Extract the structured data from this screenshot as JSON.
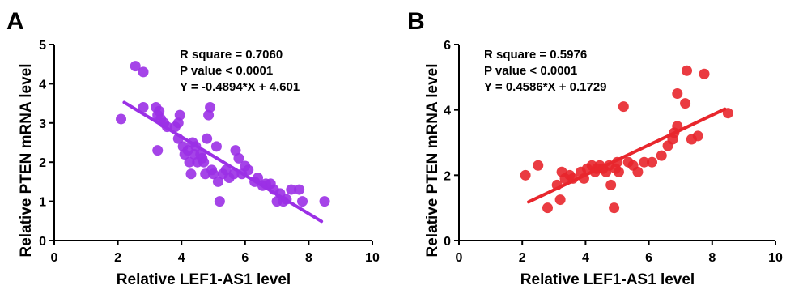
{
  "chart_data": [
    {
      "panel_label": "A",
      "type": "scatter",
      "xlabel": "Relative LEF1-AS1 level",
      "ylabel": "Relative PTEN mRNA level",
      "xlim": [
        0,
        10
      ],
      "ylim": [
        0,
        5
      ],
      "xticks": [
        0,
        2,
        4,
        6,
        8,
        10
      ],
      "yticks": [
        0,
        1,
        2,
        3,
        4,
        5
      ],
      "color": "#9b30e6",
      "annotations": [
        "R square = 0.7060",
        "P value < 0.0001",
        "Y = -0.4894*X + 4.601"
      ],
      "fit": {
        "slope": -0.4894,
        "intercept": 4.601,
        "x_range": [
          2.2,
          8.4
        ]
      },
      "points": [
        [
          2.1,
          3.1
        ],
        [
          2.55,
          4.45
        ],
        [
          2.8,
          4.3
        ],
        [
          2.8,
          3.4
        ],
        [
          3.2,
          3.4
        ],
        [
          3.25,
          3.2
        ],
        [
          3.3,
          3.3
        ],
        [
          3.35,
          3.1
        ],
        [
          3.45,
          3.0
        ],
        [
          3.55,
          2.9
        ],
        [
          3.25,
          2.3
        ],
        [
          3.8,
          2.9
        ],
        [
          3.9,
          3.0
        ],
        [
          3.95,
          3.2
        ],
        [
          3.9,
          2.6
        ],
        [
          4.05,
          2.4
        ],
        [
          4.1,
          2.2
        ],
        [
          4.2,
          2.3
        ],
        [
          4.25,
          2.0
        ],
        [
          4.3,
          1.7
        ],
        [
          4.35,
          2.5
        ],
        [
          4.4,
          2.2
        ],
        [
          4.45,
          2.4
        ],
        [
          4.5,
          2.0
        ],
        [
          4.6,
          2.2
        ],
        [
          4.65,
          2.1
        ],
        [
          4.7,
          2.0
        ],
        [
          4.75,
          1.7
        ],
        [
          4.8,
          2.6
        ],
        [
          4.85,
          3.2
        ],
        [
          4.9,
          3.4
        ],
        [
          4.95,
          1.8
        ],
        [
          5.0,
          1.7
        ],
        [
          5.1,
          2.4
        ],
        [
          5.15,
          1.5
        ],
        [
          5.2,
          1.0
        ],
        [
          5.3,
          1.7
        ],
        [
          5.4,
          1.8
        ],
        [
          5.5,
          1.6
        ],
        [
          5.65,
          1.7
        ],
        [
          5.7,
          2.3
        ],
        [
          5.8,
          2.1
        ],
        [
          5.9,
          1.7
        ],
        [
          6.0,
          1.9
        ],
        [
          6.1,
          1.8
        ],
        [
          6.3,
          1.5
        ],
        [
          6.4,
          1.6
        ],
        [
          6.55,
          1.4
        ],
        [
          6.65,
          1.45
        ],
        [
          6.8,
          1.45
        ],
        [
          6.9,
          1.3
        ],
        [
          7.0,
          1.0
        ],
        [
          7.1,
          1.2
        ],
        [
          7.2,
          1.0
        ],
        [
          7.3,
          1.05
        ],
        [
          7.45,
          1.3
        ],
        [
          7.7,
          1.3
        ],
        [
          7.8,
          1.0
        ],
        [
          8.5,
          1.0
        ]
      ]
    },
    {
      "panel_label": "B",
      "type": "scatter",
      "xlabel": "Relative LEF1-AS1 level",
      "ylabel": "Relative PTEN mRNA level",
      "xlim": [
        0,
        10
      ],
      "ylim": [
        0,
        6
      ],
      "xticks": [
        0,
        2,
        4,
        6,
        8,
        10
      ],
      "yticks": [
        0,
        2,
        4,
        6
      ],
      "color": "#e8262c",
      "annotations": [
        "R square = 0.5976",
        "P value < 0.0001",
        "Y = 0.4586*X + 0.1729"
      ],
      "fit": {
        "slope": 0.4586,
        "intercept": 0.1729,
        "x_range": [
          2.2,
          8.4
        ]
      },
      "points": [
        [
          2.1,
          2.0
        ],
        [
          2.5,
          2.3
        ],
        [
          2.8,
          1.0
        ],
        [
          3.1,
          1.7
        ],
        [
          3.2,
          1.25
        ],
        [
          3.25,
          2.1
        ],
        [
          3.35,
          1.9
        ],
        [
          3.5,
          2.0
        ],
        [
          3.6,
          1.9
        ],
        [
          3.85,
          2.1
        ],
        [
          3.95,
          1.9
        ],
        [
          4.05,
          2.2
        ],
        [
          4.2,
          2.3
        ],
        [
          4.3,
          2.1
        ],
        [
          4.35,
          2.2
        ],
        [
          4.45,
          2.3
        ],
        [
          4.55,
          2.2
        ],
        [
          4.65,
          2.1
        ],
        [
          4.75,
          2.3
        ],
        [
          4.8,
          1.7
        ],
        [
          4.9,
          1.0
        ],
        [
          4.95,
          2.2
        ],
        [
          5.0,
          2.4
        ],
        [
          5.05,
          2.1
        ],
        [
          5.2,
          4.1
        ],
        [
          5.35,
          2.4
        ],
        [
          5.5,
          2.3
        ],
        [
          5.65,
          2.1
        ],
        [
          5.85,
          2.4
        ],
        [
          6.1,
          2.4
        ],
        [
          6.4,
          2.6
        ],
        [
          6.6,
          2.9
        ],
        [
          6.75,
          3.1
        ],
        [
          6.8,
          3.3
        ],
        [
          6.9,
          3.5
        ],
        [
          6.9,
          4.5
        ],
        [
          7.15,
          4.2
        ],
        [
          7.2,
          5.2
        ],
        [
          7.35,
          3.1
        ],
        [
          7.55,
          3.2
        ],
        [
          7.75,
          5.1
        ],
        [
          8.5,
          3.9
        ]
      ]
    }
  ]
}
